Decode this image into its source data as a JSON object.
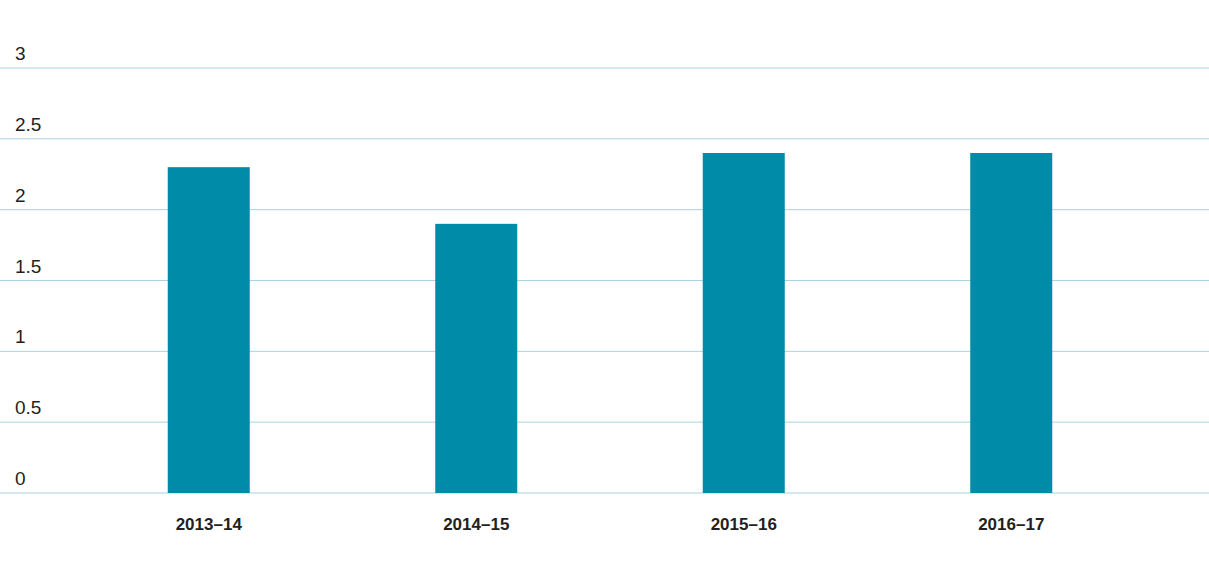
{
  "chart_data": {
    "type": "bar",
    "categories": [
      "2013–14",
      "2014–15",
      "2015–16",
      "2016–17"
    ],
    "values": [
      2.3,
      1.9,
      2.4,
      2.4
    ],
    "color": "#008ca8",
    "ylim": [
      0,
      3
    ],
    "yticks": [
      0,
      0.5,
      1,
      1.5,
      2,
      2.5,
      3
    ],
    "grid": true
  }
}
